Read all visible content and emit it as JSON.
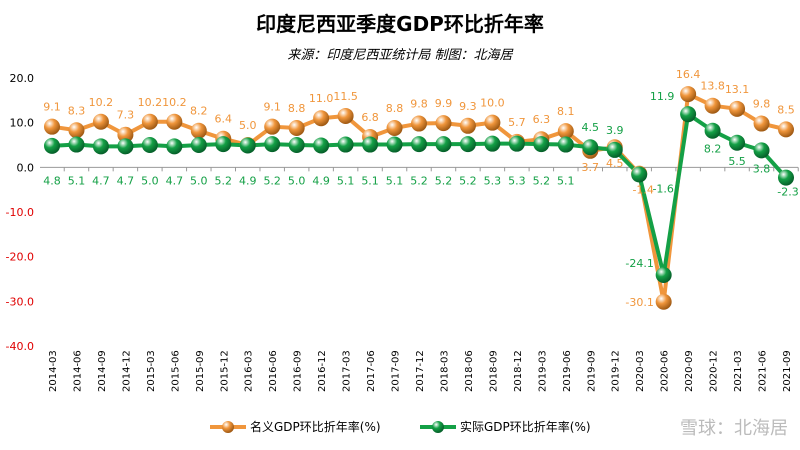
{
  "chart_data": {
    "type": "line",
    "title": "印度尼西亚季度GDP环比折年率",
    "subtitle": "来源：印度尼西亚统计局 制图：北海居",
    "categories": [
      "2014-03",
      "2014-06",
      "2014-09",
      "2014-12",
      "2015-03",
      "2015-06",
      "2015-09",
      "2015-12",
      "2016-03",
      "2016-06",
      "2016-09",
      "2016-12",
      "2017-03",
      "2017-06",
      "2017-09",
      "2017-12",
      "2018-03",
      "2018-06",
      "2018-09",
      "2018-12",
      "2019-03",
      "2019-06",
      "2019-09",
      "2019-12",
      "2020-03",
      "2020-06",
      "2020-09",
      "2020-12",
      "2021-03",
      "2021-06",
      "2021-09"
    ],
    "series": [
      {
        "name": "名义GDP环比折年率(%)",
        "color": "#f0963c",
        "values": [
          9.1,
          8.3,
          10.2,
          7.3,
          10.2,
          10.2,
          8.2,
          6.4,
          5.0,
          9.1,
          8.8,
          11.0,
          11.5,
          6.8,
          8.8,
          9.8,
          9.9,
          9.3,
          10.0,
          5.7,
          6.3,
          8.1,
          3.7,
          4.5,
          -1.4,
          -30.1,
          16.4,
          13.8,
          13.1,
          9.8,
          8.5
        ]
      },
      {
        "name": "实际GDP环比折年率(%)",
        "color": "#14a046",
        "values": [
          4.8,
          5.1,
          4.7,
          4.7,
          5.0,
          4.7,
          5.0,
          5.2,
          4.9,
          5.2,
          5.0,
          4.9,
          5.1,
          5.1,
          5.1,
          5.2,
          5.2,
          5.2,
          5.3,
          5.3,
          5.2,
          5.1,
          4.5,
          3.9,
          -1.6,
          -24.1,
          11.9,
          8.2,
          5.5,
          3.8,
          -2.3
        ]
      }
    ],
    "yticks": [
      "20.0",
      "10.0",
      "0.0",
      "-10.0",
      "-20.0",
      "-30.0",
      "-40.0"
    ],
    "ylim": [
      -40,
      20
    ],
    "negative_tick_color": "#e00000",
    "grid": false,
    "legend": "bottom"
  },
  "watermark": "雪球：北海居"
}
